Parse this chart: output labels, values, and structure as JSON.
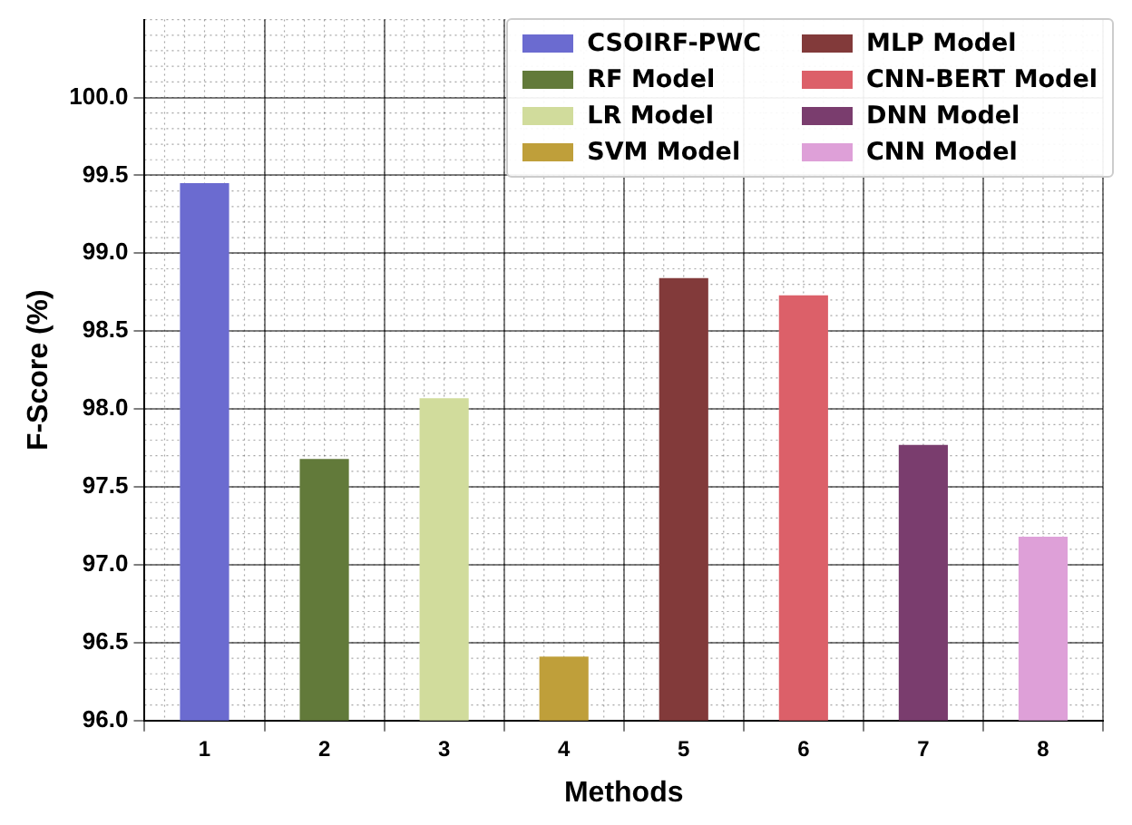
{
  "chart_data": {
    "type": "bar",
    "xlabel": "Methods",
    "ylabel": "F-Score (%)",
    "categories": [
      "1",
      "2",
      "3",
      "4",
      "5",
      "6",
      "7",
      "8"
    ],
    "series": [
      {
        "name": "CSOIRF-PWC",
        "color": "#6b6bd0",
        "values": [
          99.45,
          null,
          null,
          null,
          null,
          null,
          null,
          null
        ]
      },
      {
        "name": "RF Model",
        "color": "#627a3a",
        "values": [
          null,
          97.68,
          null,
          null,
          null,
          null,
          null,
          null
        ]
      },
      {
        "name": "LR Model",
        "color": "#d1dc9c",
        "values": [
          null,
          null,
          98.07,
          null,
          null,
          null,
          null,
          null
        ]
      },
      {
        "name": "SVM Model",
        "color": "#bf9f3a",
        "values": [
          null,
          null,
          null,
          96.41,
          null,
          null,
          null,
          null
        ]
      },
      {
        "name": "MLP Model",
        "color": "#823a3a",
        "values": [
          null,
          null,
          null,
          null,
          98.84,
          null,
          null,
          null
        ]
      },
      {
        "name": "CNN-BERT Model",
        "color": "#dc6069",
        "values": [
          null,
          null,
          null,
          null,
          null,
          98.73,
          null,
          null
        ]
      },
      {
        "name": "DNN Model",
        "color": "#7a3d6e",
        "values": [
          null,
          null,
          null,
          null,
          null,
          null,
          97.77,
          null
        ]
      },
      {
        "name": "CNN Model",
        "color": "#dea0d8",
        "values": [
          null,
          null,
          null,
          null,
          null,
          null,
          null,
          97.18
        ]
      }
    ],
    "ylim": [
      96.0,
      100.5
    ],
    "yticks": [
      {
        "value": 96,
        "label": "96.0"
      },
      {
        "value": 96.5,
        "label": "96.5"
      },
      {
        "value": 97,
        "label": "97.0"
      },
      {
        "value": 97.5,
        "label": "97.5"
      },
      {
        "value": 98,
        "label": "98.0"
      },
      {
        "value": 98.5,
        "label": "98.5"
      },
      {
        "value": 99,
        "label": "99.0"
      },
      {
        "value": 99.5,
        "label": "99.5"
      },
      {
        "value": 100,
        "label": "100.0"
      }
    ],
    "grid": true,
    "legend": "top right"
  }
}
